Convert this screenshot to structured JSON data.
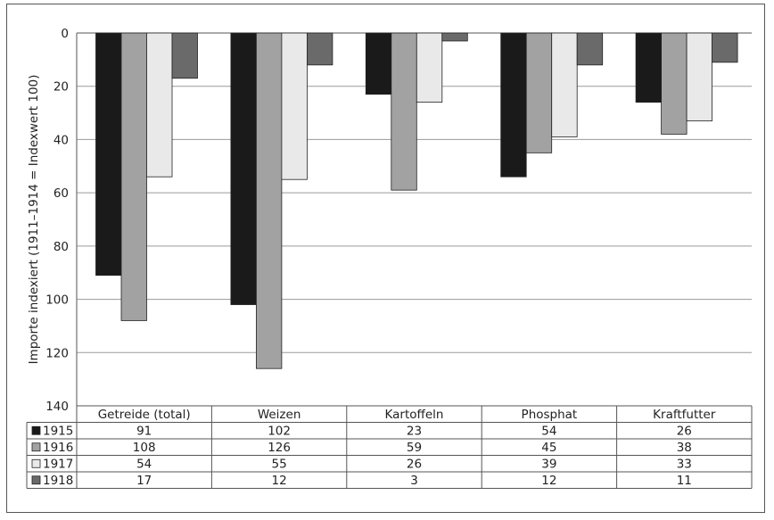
{
  "chart_data": {
    "type": "bar",
    "orientation": "vertical",
    "y_axis_inverted": true,
    "ylabel": "Importe indexiert (1911–1914 = Indexwert 100)",
    "ylim": [
      0,
      140
    ],
    "yticks": [
      0,
      20,
      40,
      60,
      80,
      100,
      120,
      140
    ],
    "grid": true,
    "legend": "data-table",
    "categories": [
      "Getreide (total)",
      "Weizen",
      "Kartoffeln",
      "Phosphat",
      "Kraftfutter"
    ],
    "series": [
      {
        "name": "1915",
        "color": "#1a1a1a",
        "values": [
          91,
          102,
          23,
          54,
          26
        ]
      },
      {
        "name": "1916",
        "color": "#a2a2a2",
        "values": [
          108,
          126,
          59,
          45,
          38
        ]
      },
      {
        "name": "1917",
        "color": "#e9e9e9",
        "values": [
          54,
          55,
          26,
          39,
          33
        ]
      },
      {
        "name": "1918",
        "color": "#6a6a6a",
        "values": [
          17,
          12,
          3,
          12,
          11
        ]
      }
    ]
  }
}
